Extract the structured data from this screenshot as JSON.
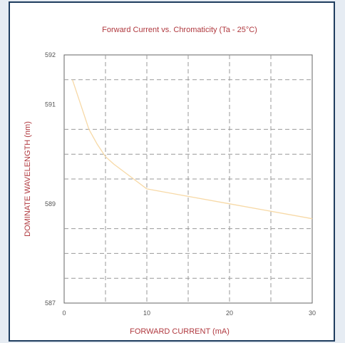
{
  "chart_data": {
    "type": "line",
    "title": "Forward Current vs. Chromaticity (Ta - 25°C)",
    "xlabel": "FORWARD CURRENT (mA)",
    "ylabel": "DOMINATE WAVELENGTH (nm)",
    "xlim": [
      0,
      30
    ],
    "ylim": [
      587,
      592
    ],
    "x_tick_labels": [
      "0",
      "10",
      "20",
      "30"
    ],
    "y_tick_labels": [
      "587",
      "589",
      "591",
      "592"
    ],
    "grid": true,
    "series": [
      {
        "x": [
          1,
          2,
          3,
          4,
          5,
          6,
          8,
          10,
          15,
          20,
          25,
          30
        ],
        "y": [
          591.5,
          591.0,
          590.5,
          590.2,
          589.95,
          589.8,
          589.55,
          589.3,
          589.15,
          589.0,
          588.85,
          588.7
        ]
      }
    ]
  },
  "colors": {
    "frame": "#1f3d5f",
    "text": "#b0393f",
    "line": "#f7d9a6",
    "grid": "#999999"
  }
}
